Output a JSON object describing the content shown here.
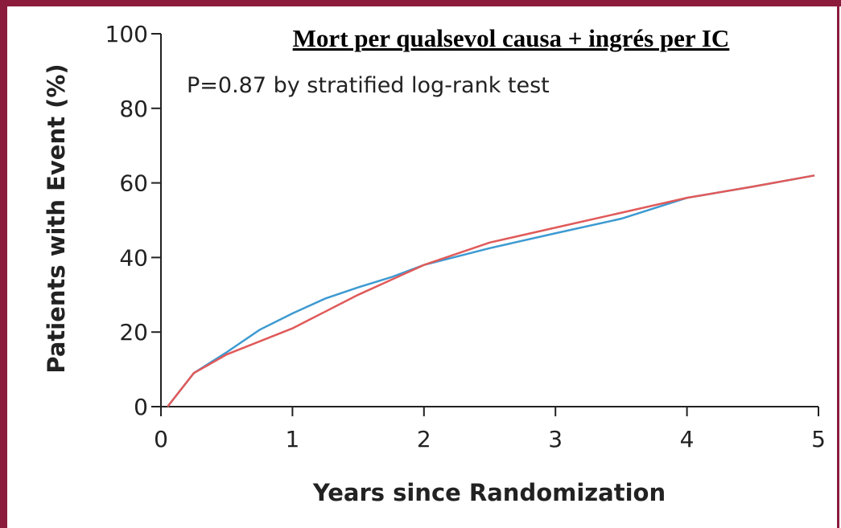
{
  "chart_data": {
    "type": "line",
    "title": "Mort per qualsevol causa + ingrés per IC",
    "annotation": "P=0.87 by stratified log-rank test",
    "x_label": "Years since Randomization",
    "y_label": "Patients with Event (%)",
    "x": [
      0.05,
      0.25,
      0.5,
      0.75,
      1,
      1.25,
      1.5,
      1.75,
      2,
      2.5,
      3,
      3.5,
      4,
      4.5,
      4.97
    ],
    "series": [
      {
        "color": "#3d9ad1",
        "values": [
          0,
          9,
          14.6,
          20.6,
          25,
          29,
          32,
          34.7,
          38,
          42.5,
          46.5,
          50.4,
          56,
          59,
          62
        ]
      },
      {
        "color": "#e05a5a",
        "values": [
          0,
          9,
          14,
          17.5,
          21,
          25.5,
          30,
          34,
          38,
          44,
          48,
          52,
          56,
          59,
          62
        ]
      }
    ],
    "xlim": [
      0,
      5
    ],
    "xticks": [
      0,
      1,
      2,
      3,
      4,
      5
    ],
    "ylim": [
      0,
      100
    ],
    "yticks": [
      0,
      20,
      40,
      60,
      80,
      100
    ],
    "grid": false
  }
}
